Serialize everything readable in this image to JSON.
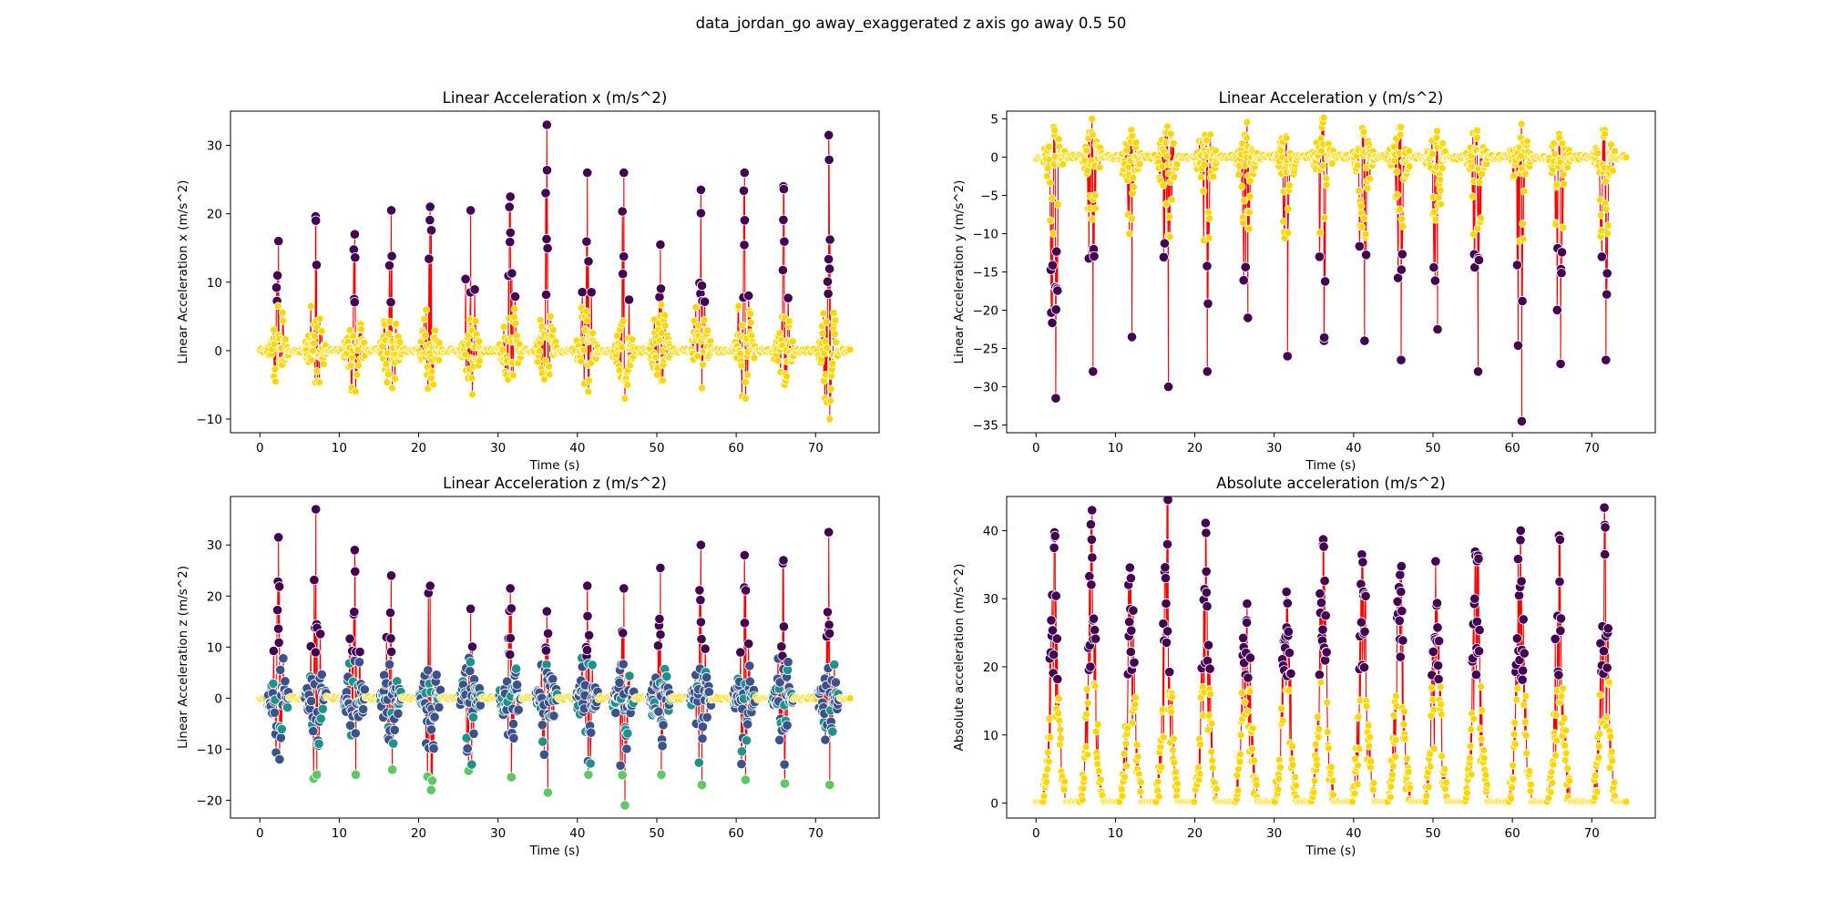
{
  "figure": {
    "suptitle": "data_jordan_go away_exaggerated z axis go away 0.5 50"
  },
  "colors": {
    "line": "#ff0000",
    "low_points": "#ffd700",
    "high_points": "#440154",
    "mid_points": "#3b528b",
    "z_teal": "#21918c",
    "z_green": "#5ec962",
    "point_edge": "#ffffff"
  },
  "chart_data": [
    {
      "id": "x",
      "type": "scatter",
      "title": "Linear Acceleration x (m/s^2)",
      "xlabel": "Time (s)",
      "ylabel": "Linear Acceleration x (m/s^2)",
      "xlim": [
        -3.7,
        78.0
      ],
      "ylim": [
        -12.0,
        35.0
      ],
      "xticks": [
        0,
        10,
        20,
        30,
        40,
        50,
        60,
        70
      ],
      "yticks": [
        -10,
        0,
        10,
        20,
        30
      ],
      "x_range": [
        0,
        74.5
      ],
      "baseline": 0,
      "noise": 4.5,
      "threshold_high": 7,
      "bursts": [
        {
          "t": 2.3,
          "max": 16.0,
          "min": -1.5
        },
        {
          "t": 7.0,
          "max": 19.0,
          "min": -3.0
        },
        {
          "t": 11.9,
          "max": 17.0,
          "min": -6.0
        },
        {
          "t": 16.5,
          "max": 20.5,
          "min": -5.5
        },
        {
          "t": 21.4,
          "max": 21.0,
          "min": -4.0
        },
        {
          "t": 26.5,
          "max": 20.5,
          "min": -4.0
        },
        {
          "t": 31.5,
          "max": 22.5,
          "min": -3.5
        },
        {
          "t": 36.1,
          "max": 33.0,
          "min": -3.0
        },
        {
          "t": 41.2,
          "max": 26.0,
          "min": -6.0
        },
        {
          "t": 45.8,
          "max": 26.0,
          "min": -7.0
        },
        {
          "t": 50.4,
          "max": 15.5,
          "min": -4.5
        },
        {
          "t": 55.5,
          "max": 23.5,
          "min": -5.5
        },
        {
          "t": 61.0,
          "max": 26.0,
          "min": -7.0
        },
        {
          "t": 65.9,
          "max": 24.0,
          "min": -5.0
        },
        {
          "t": 71.6,
          "max": 31.5,
          "min": -10.0
        }
      ]
    },
    {
      "id": "y",
      "type": "scatter",
      "title": "Linear Acceleration y (m/s^2)",
      "xlabel": "Time (s)",
      "ylabel": "Linear Acceleration y (m/s^2)",
      "xlim": [
        -3.7,
        78.0
      ],
      "ylim": [
        -36.0,
        6.0
      ],
      "xticks": [
        0,
        10,
        20,
        30,
        40,
        50,
        60,
        70
      ],
      "yticks": [
        -35,
        -30,
        -25,
        -20,
        -15,
        -10,
        -5,
        0,
        5
      ],
      "x_range": [
        0,
        74.5
      ],
      "baseline": 0,
      "noise": 3.0,
      "threshold_low": -11,
      "bursts": [
        {
          "t": 2.3,
          "max": 3.5,
          "min": -31.5
        },
        {
          "t": 7.0,
          "max": 5.0,
          "min": -28.0
        },
        {
          "t": 11.9,
          "max": 2.0,
          "min": -23.5
        },
        {
          "t": 16.5,
          "max": 4.0,
          "min": -30.0
        },
        {
          "t": 21.4,
          "max": 2.0,
          "min": -28.0
        },
        {
          "t": 26.5,
          "max": 2.5,
          "min": -21.0
        },
        {
          "t": 31.5,
          "max": 2.5,
          "min": -26.0
        },
        {
          "t": 36.1,
          "max": 4.5,
          "min": -24.0
        },
        {
          "t": 41.2,
          "max": 3.0,
          "min": -24.0
        },
        {
          "t": 45.8,
          "max": 4.0,
          "min": -26.5
        },
        {
          "t": 50.4,
          "max": 2.5,
          "min": -22.5
        },
        {
          "t": 55.5,
          "max": 2.5,
          "min": -28.0
        },
        {
          "t": 61.0,
          "max": 2.5,
          "min": -34.5
        },
        {
          "t": 65.9,
          "max": 2.5,
          "min": -27.0
        },
        {
          "t": 71.6,
          "max": 3.0,
          "min": -26.5
        }
      ]
    },
    {
      "id": "z",
      "type": "scatter",
      "title": "Linear Acceleration z (m/s^2)",
      "xlabel": "Time (s)",
      "ylabel": "Linear Acceleration z (m/s^2)",
      "xlim": [
        -3.7,
        78.0
      ],
      "ylim": [
        -23.5,
        39.5
      ],
      "xticks": [
        0,
        10,
        20,
        30,
        40,
        50,
        60,
        70
      ],
      "yticks": [
        -20,
        -10,
        0,
        10,
        20,
        30
      ],
      "x_range": [
        0,
        74.5
      ],
      "baseline": 0,
      "noise": 6.0,
      "threshold_high": 8,
      "bursts": [
        {
          "t": 2.3,
          "max": 31.5,
          "min": -12.0
        },
        {
          "t": 7.0,
          "max": 37.0,
          "min": -15.0
        },
        {
          "t": 11.9,
          "max": 29.0,
          "min": -15.0
        },
        {
          "t": 16.5,
          "max": 24.0,
          "min": -14.0
        },
        {
          "t": 21.4,
          "max": 22.0,
          "min": -18.0
        },
        {
          "t": 26.5,
          "max": 17.5,
          "min": -13.0
        },
        {
          "t": 31.5,
          "max": 21.5,
          "min": -15.5
        },
        {
          "t": 36.1,
          "max": 17.0,
          "min": -18.5
        },
        {
          "t": 41.2,
          "max": 22.0,
          "min": -15.0
        },
        {
          "t": 45.8,
          "max": 21.5,
          "min": -21.0
        },
        {
          "t": 50.4,
          "max": 25.5,
          "min": -15.0
        },
        {
          "t": 55.5,
          "max": 30.0,
          "min": -17.0
        },
        {
          "t": 61.0,
          "max": 28.0,
          "min": -16.0
        },
        {
          "t": 65.9,
          "max": 27.0,
          "min": -13.0
        },
        {
          "t": 71.6,
          "max": 32.5,
          "min": -17.0
        }
      ]
    },
    {
      "id": "abs",
      "type": "scatter",
      "title": "Absolute acceleration (m/s^2)",
      "xlabel": "Time (s)",
      "ylabel": "Absolute acceleration (m/s^2)",
      "xlim": [
        -3.7,
        78.0
      ],
      "ylim": [
        -2.2,
        45.0
      ],
      "xticks": [
        0,
        10,
        20,
        30,
        40,
        50,
        60,
        70
      ],
      "yticks": [
        0,
        10,
        20,
        30,
        40
      ],
      "x_range": [
        0,
        74.5
      ],
      "baseline": 0,
      "noise": 3.0,
      "threshold_high": 18,
      "bursts": [
        {
          "t": 2.3,
          "max": 39.0,
          "min": 0
        },
        {
          "t": 7.0,
          "max": 43.0,
          "min": 0
        },
        {
          "t": 11.9,
          "max": 33.0,
          "min": 0
        },
        {
          "t": 16.5,
          "max": 38.0,
          "min": 0
        },
        {
          "t": 21.4,
          "max": 34.0,
          "min": 0
        },
        {
          "t": 26.5,
          "max": 26.5,
          "min": 0
        },
        {
          "t": 31.5,
          "max": 31.0,
          "min": 0
        },
        {
          "t": 36.1,
          "max": 38.0,
          "min": 0
        },
        {
          "t": 41.2,
          "max": 31.0,
          "min": 0
        },
        {
          "t": 45.8,
          "max": 33.5,
          "min": 0
        },
        {
          "t": 50.4,
          "max": 29.0,
          "min": 0
        },
        {
          "t": 55.5,
          "max": 35.5,
          "min": 0
        },
        {
          "t": 61.0,
          "max": 40.0,
          "min": 0
        },
        {
          "t": 65.9,
          "max": 32.5,
          "min": 0
        },
        {
          "t": 71.6,
          "max": 36.5,
          "min": 0
        }
      ]
    }
  ]
}
